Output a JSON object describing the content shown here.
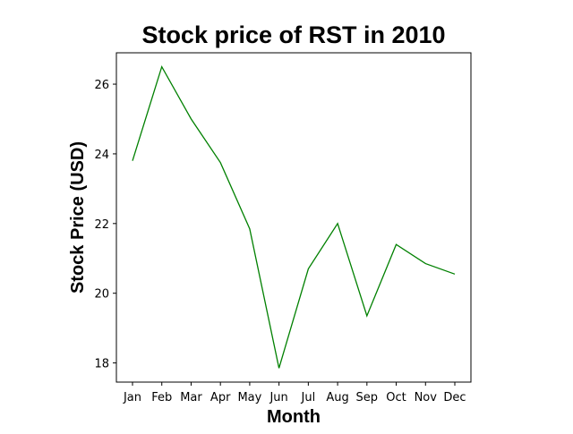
{
  "chart_data": {
    "type": "line",
    "title": "Stock price of RST in 2010",
    "xlabel": "Month",
    "ylabel": "Stock Price (USD)",
    "categories": [
      "Jan",
      "Feb",
      "Mar",
      "Apr",
      "May",
      "Jun",
      "Jul",
      "Aug",
      "Sep",
      "Oct",
      "Nov",
      "Dec"
    ],
    "series": [
      {
        "values": [
          23.8,
          26.5,
          25.0,
          23.75,
          21.85,
          17.85,
          20.7,
          22.0,
          19.35,
          21.4,
          20.85,
          20.55
        ],
        "color": "#008000"
      }
    ],
    "ylim": [
      17.45,
      26.9
    ],
    "yticks": [
      18,
      20,
      22,
      24,
      26
    ],
    "grid": false,
    "legend": "none"
  }
}
